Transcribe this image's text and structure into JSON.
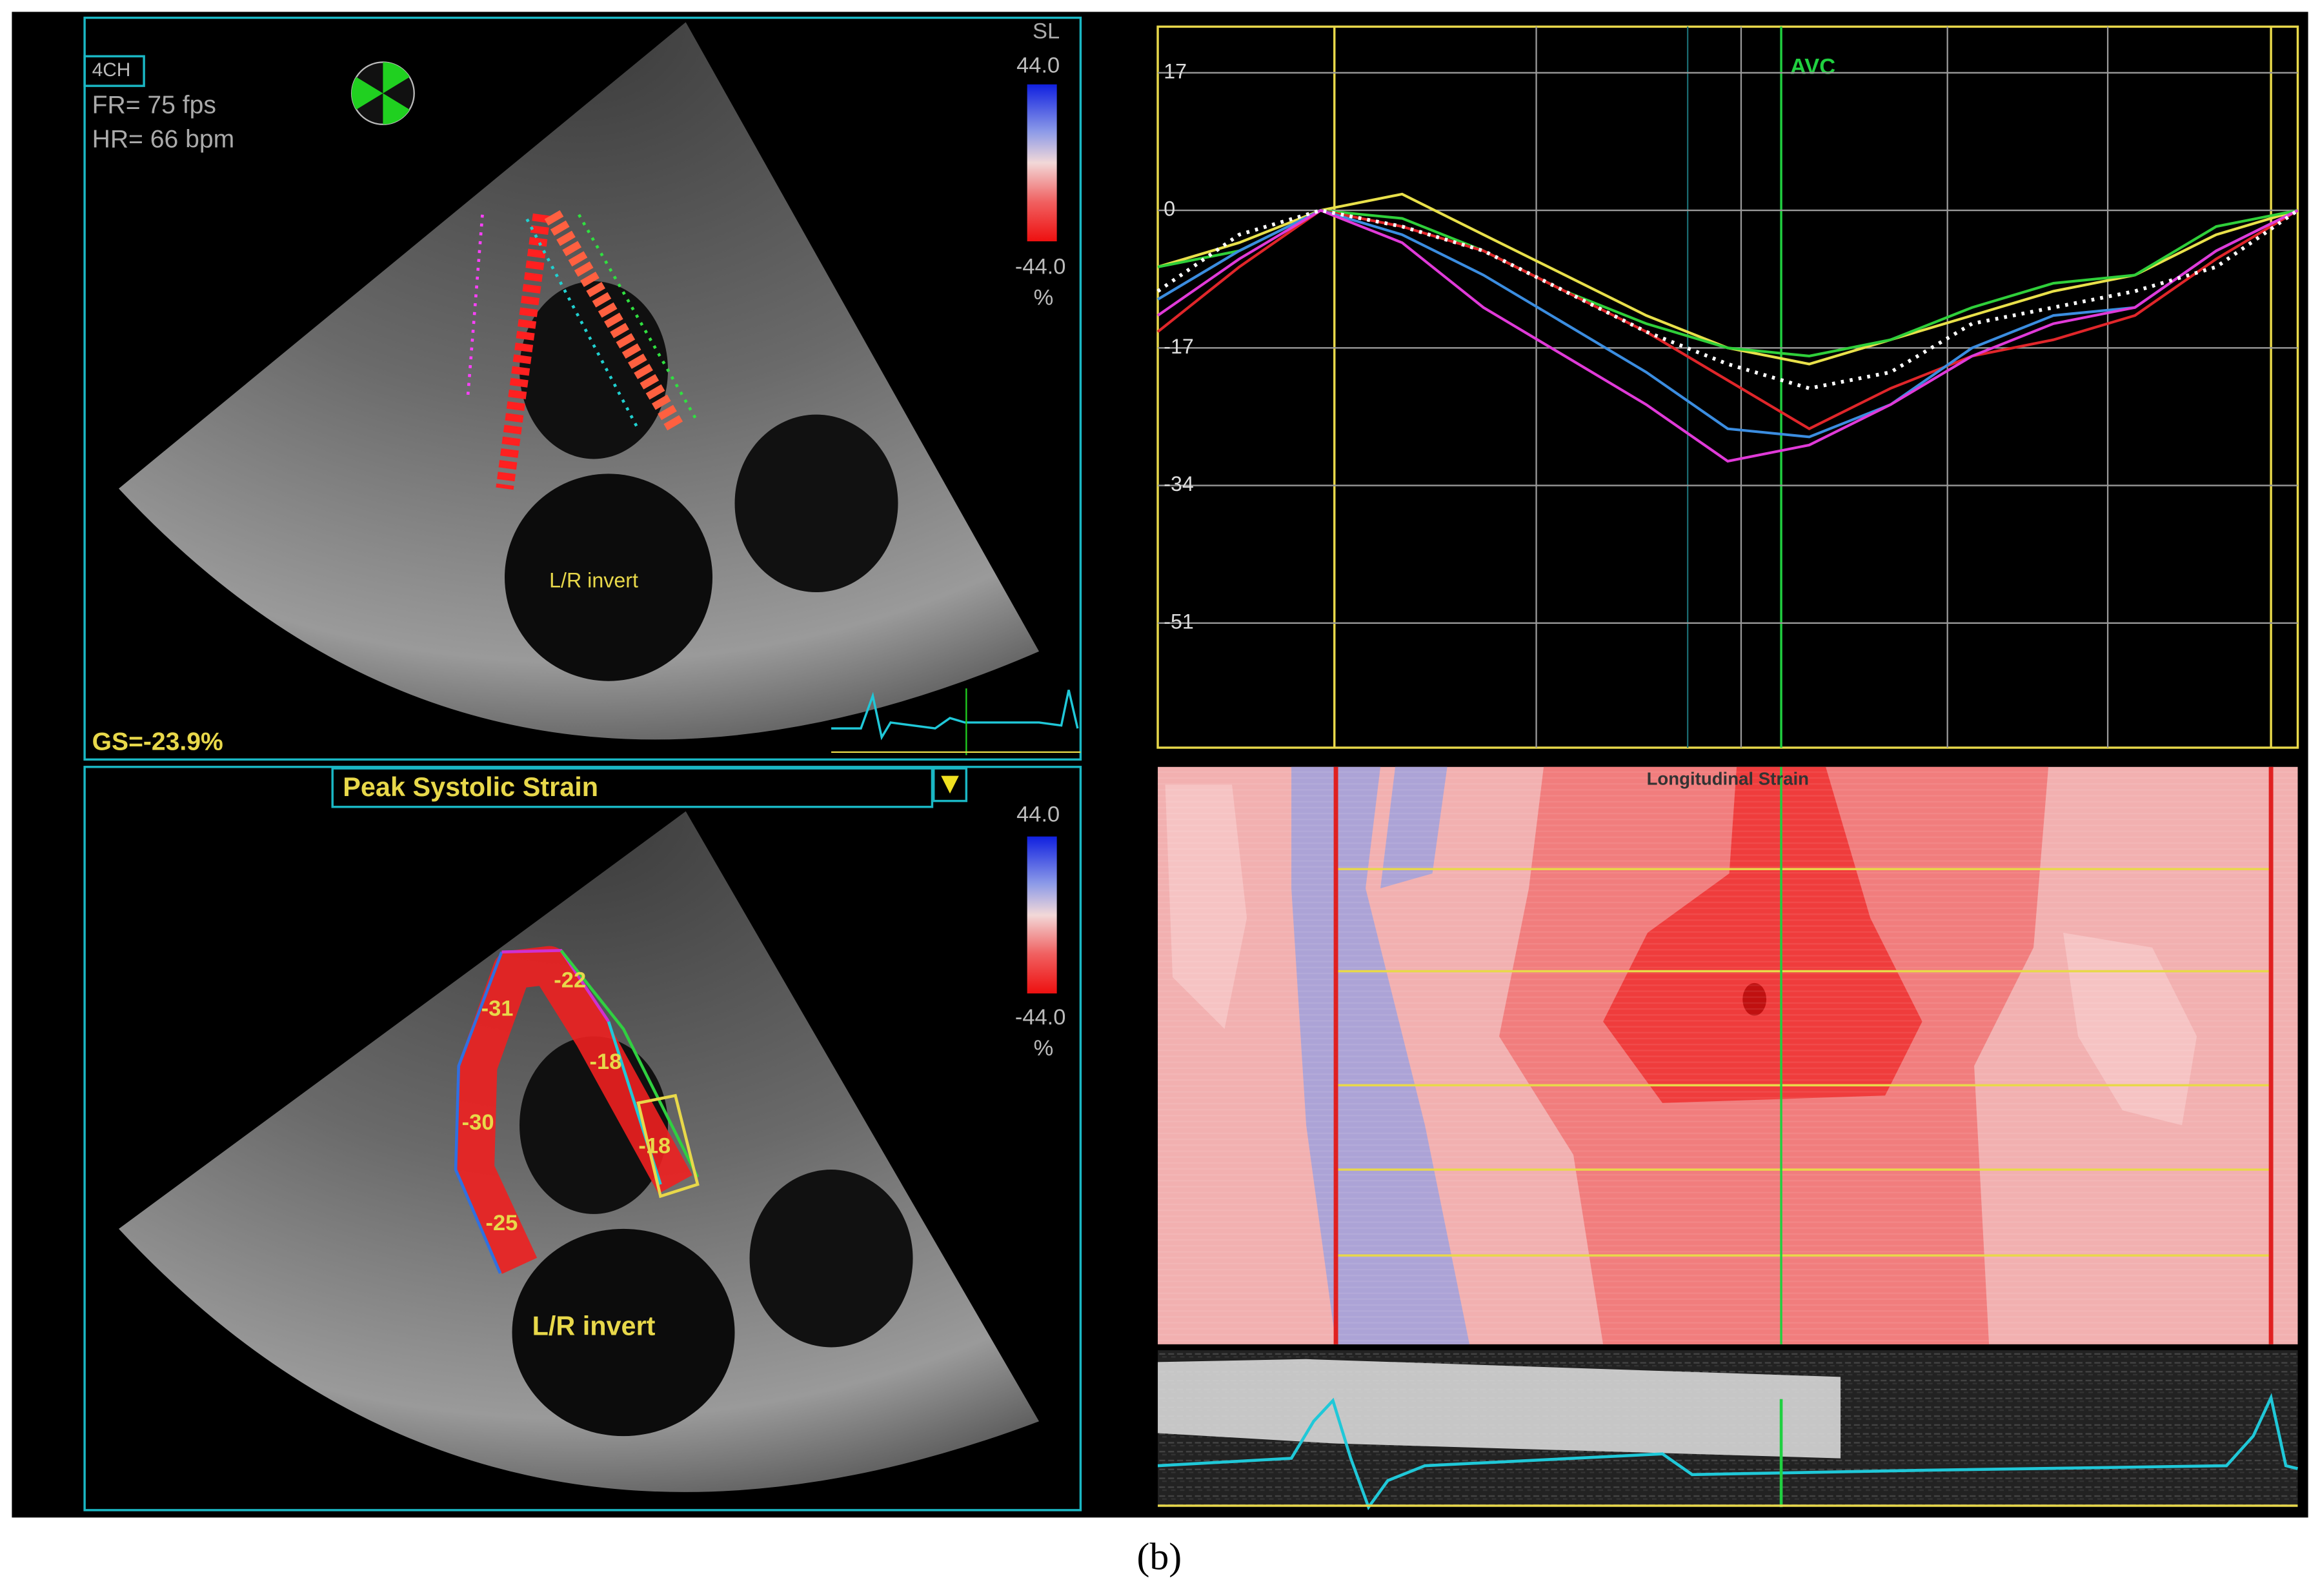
{
  "top_left": {
    "view": "4CH",
    "frame_rate": "FR= 75 fps",
    "heart_rate": "HR= 66 bpm",
    "scale_title": "SL",
    "scale_max": "44.0",
    "scale_min": "-44.0",
    "scale_unit": "%",
    "orientation": "L/R invert",
    "global_strain": "GS=-23.9%"
  },
  "bottom_left": {
    "mode": "Peak Systolic Strain",
    "scale_max": "44.0",
    "scale_min": "-44.0",
    "scale_unit": "%",
    "segments": [
      -31,
      -22,
      -18,
      -30,
      -18,
      -25
    ],
    "orientation": "L/R invert"
  },
  "strain_plot": {
    "ylim": [
      -66.4,
      22.7
    ],
    "yticks": [
      17,
      0,
      -17,
      -34,
      -51
    ],
    "marker": "AVC",
    "series": [
      {
        "color": "#e8e04a",
        "values": [
          -7,
          -4,
          0,
          2,
          -3,
          -8,
          -13,
          -17,
          -19,
          -16,
          -13,
          -10,
          -8,
          -3,
          0
        ]
      },
      {
        "color": "#2fcf3a",
        "values": [
          -7,
          -5,
          0,
          -1,
          -5,
          -10,
          -14,
          -17,
          -18,
          -16,
          -12,
          -9,
          -8,
          -2,
          0
        ]
      },
      {
        "color": "#e0262a",
        "values": [
          -15,
          -7,
          0,
          -2,
          -5,
          -10,
          -15,
          -21,
          -27,
          -22,
          -18,
          -16,
          -13,
          -6,
          0
        ]
      },
      {
        "color": "#3b8de0",
        "values": [
          -11,
          -5,
          0,
          -3,
          -8,
          -14,
          -20,
          -27,
          -28,
          -24,
          -17,
          -13,
          -12,
          -5,
          0
        ]
      },
      {
        "color": "#e03ad8",
        "values": [
          -13,
          -6,
          0,
          -4,
          -12,
          -18,
          -24,
          -31,
          -29,
          -24,
          -18,
          -14,
          -12,
          -5,
          0
        ]
      },
      {
        "color": "#ffffff",
        "dashed": true,
        "values": [
          -10,
          -3,
          0,
          -2,
          -5,
          -10,
          -15,
          -19,
          -22,
          -20,
          -14,
          -12,
          -10,
          -7,
          0
        ]
      }
    ]
  },
  "heatmap": {
    "title": "Longitudinal Strain"
  },
  "caption": "(b)"
}
